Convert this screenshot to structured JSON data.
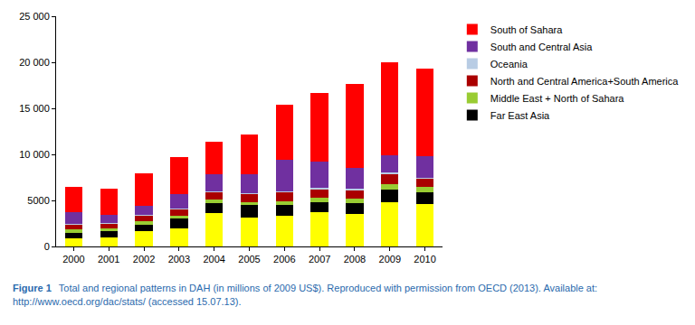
{
  "chart_data": {
    "type": "bar",
    "stacked": true,
    "grid": false,
    "legend": "right",
    "categories": [
      "2000",
      "2001",
      "2002",
      "2003",
      "2004",
      "2005",
      "2006",
      "2007",
      "2008",
      "2009",
      "2010"
    ],
    "ylim": [
      0,
      25000
    ],
    "yticks": [
      0,
      5000,
      {
        "value": 10000,
        "label": "10 000"
      },
      {
        "value": 15000,
        "label": "15 000"
      },
      {
        "value": 20000,
        "label": "20 000"
      },
      {
        "value": 25000,
        "label": "25 000"
      }
    ],
    "series": [
      {
        "color": "#ffff00",
        "values": [
          900,
          1000,
          1700,
          2000,
          3600,
          3100,
          3300,
          3700,
          3500,
          4800,
          4600
        ]
      },
      {
        "name": "Far East Asia",
        "color": "#000000",
        "values": [
          600,
          700,
          700,
          1000,
          1100,
          1400,
          1200,
          1100,
          1200,
          1400,
          1300
        ]
      },
      {
        "name": "Middle East + North of Sahara",
        "color": "#99cc33",
        "values": [
          350,
          300,
          350,
          350,
          350,
          350,
          450,
          500,
          500,
          550,
          550
        ]
      },
      {
        "name": "North and Central America+South America",
        "color": "#aa0000",
        "values": [
          500,
          450,
          600,
          700,
          800,
          800,
          900,
          900,
          900,
          1100,
          900
        ]
      },
      {
        "name": "Oceania",
        "color": "#b8cce4",
        "values": [
          100,
          100,
          100,
          100,
          100,
          100,
          150,
          150,
          150,
          150,
          150
        ]
      },
      {
        "name": "South and Central Asia",
        "color": "#7030a0",
        "values": [
          1300,
          900,
          1000,
          1500,
          1900,
          2100,
          3400,
          2850,
          2250,
          1900,
          2300
        ]
      },
      {
        "name": "South of Sahara",
        "color": "#ff0000",
        "values": [
          2750,
          2850,
          3450,
          4050,
          3550,
          4350,
          6000,
          7500,
          9100,
          10100,
          9500
        ]
      }
    ],
    "caption": {
      "label": "Figure 1",
      "text": "Total and regional patterns in DAH (in millions of 2009 US$). Reproduced with permission from OECD (2013). Available at: http://www.oecd.org/dac/stats/ (accessed 15.07.13)."
    }
  }
}
